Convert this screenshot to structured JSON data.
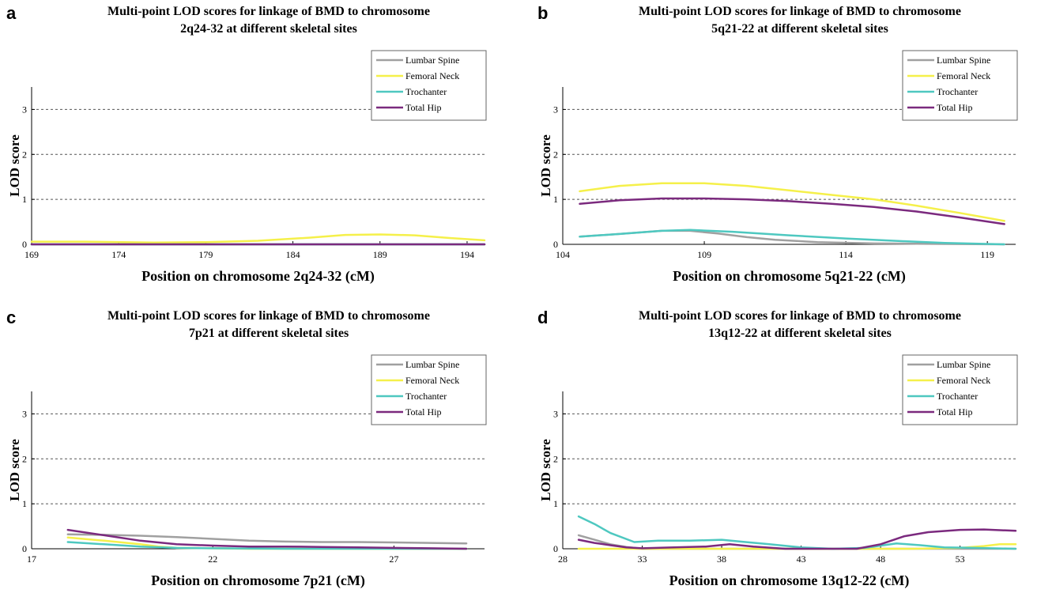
{
  "chart_data": [
    {
      "type": "line",
      "panel": "a",
      "title_line1": "Multi-point LOD scores for linkage of BMD to chromosome",
      "title_line2": "2q24-32 at different skeletal sites",
      "xlabel": "Position on chromosome 2q24-32 (cM)",
      "ylabel": "LOD score",
      "xlim": [
        169,
        195
      ],
      "ylim": [
        0,
        3.5
      ],
      "xticks": [
        169,
        174,
        179,
        184,
        189,
        194
      ],
      "yticks": [
        0,
        1,
        2,
        3
      ],
      "grid": "dashed horizontal at 1, 2, 3",
      "legend_position": "top-right",
      "series": [
        {
          "name": "Lumbar Spine",
          "color": "#a0a0a0",
          "x": [
            169,
            195
          ],
          "y": [
            0.0,
            0.0
          ]
        },
        {
          "name": "Femoral Neck",
          "color": "#f5f04a",
          "x": [
            169,
            172,
            176,
            179,
            182,
            185,
            187,
            189,
            191,
            193,
            195
          ],
          "y": [
            0.06,
            0.06,
            0.04,
            0.05,
            0.08,
            0.15,
            0.21,
            0.22,
            0.2,
            0.14,
            0.09
          ]
        },
        {
          "name": "Trochanter",
          "color": "#4ec8c0",
          "x": [
            169,
            195
          ],
          "y": [
            0.0,
            0.0
          ]
        },
        {
          "name": "Total Hip",
          "color": "#7b2a7e",
          "x": [
            169,
            195
          ],
          "y": [
            0.0,
            0.0
          ]
        }
      ]
    },
    {
      "type": "line",
      "panel": "b",
      "title_line1": "Multi-point LOD scores for linkage of BMD to chromosome",
      "title_line2": "5q21-22 at different skeletal sites",
      "xlabel": "Position on chromosome 5q21-22 (cM)",
      "ylabel": "LOD score",
      "xlim": [
        104,
        120
      ],
      "ylim": [
        0,
        3.5
      ],
      "xticks": [
        104,
        109,
        114,
        119
      ],
      "yticks": [
        0,
        1,
        2,
        3
      ],
      "grid": "dashed horizontal at 1, 2, 3",
      "legend_position": "top-right",
      "series": [
        {
          "name": "Lumbar Spine",
          "color": "#a0a0a0",
          "x": [
            104.6,
            106,
            107.5,
            108.5,
            109.5,
            110.5,
            111.5,
            113,
            115,
            117,
            119.6
          ],
          "y": [
            0.17,
            0.23,
            0.3,
            0.3,
            0.24,
            0.16,
            0.1,
            0.05,
            0.02,
            0.01,
            0.0
          ]
        },
        {
          "name": "Femoral Neck",
          "color": "#f5f04a",
          "x": [
            104.6,
            106,
            107.5,
            109,
            110.5,
            112,
            113.5,
            115,
            116.5,
            118,
            119.6
          ],
          "y": [
            1.18,
            1.3,
            1.36,
            1.36,
            1.3,
            1.2,
            1.1,
            1.0,
            0.86,
            0.7,
            0.52
          ]
        },
        {
          "name": "Trochanter",
          "color": "#4ec8c0",
          "x": [
            104.6,
            106,
            107.5,
            108.5,
            110,
            112,
            114,
            116,
            117.5,
            119.6
          ],
          "y": [
            0.17,
            0.23,
            0.3,
            0.32,
            0.28,
            0.2,
            0.13,
            0.07,
            0.03,
            0.0
          ]
        },
        {
          "name": "Total Hip",
          "color": "#7b2a7e",
          "x": [
            104.6,
            106,
            107.5,
            109,
            110.5,
            112,
            113.5,
            115,
            116.5,
            118,
            119.6
          ],
          "y": [
            0.9,
            0.98,
            1.02,
            1.02,
            1.0,
            0.96,
            0.9,
            0.83,
            0.73,
            0.6,
            0.45
          ]
        }
      ]
    },
    {
      "type": "line",
      "panel": "c",
      "title_line1": "Multi-point LOD scores for linkage of BMD to chromosome",
      "title_line2": "7p21 at different skeletal sites",
      "xlabel": "Position on chromosome 7p21 (cM)",
      "ylabel": "LOD score",
      "xlim": [
        17,
        29.5
      ],
      "ylim": [
        0,
        3.5
      ],
      "xticks": [
        17,
        22,
        27
      ],
      "yticks": [
        0,
        1,
        2,
        3
      ],
      "grid": "dashed horizontal at 1, 2, 3",
      "legend_position": "top-right",
      "series": [
        {
          "name": "Lumbar Spine",
          "color": "#a0a0a0",
          "x": [
            18,
            19,
            20,
            21,
            22,
            23,
            24,
            25,
            26,
            27,
            28,
            29
          ],
          "y": [
            0.32,
            0.31,
            0.29,
            0.26,
            0.22,
            0.18,
            0.16,
            0.15,
            0.15,
            0.14,
            0.13,
            0.12
          ]
        },
        {
          "name": "Femoral Neck",
          "color": "#f5f04a",
          "x": [
            18,
            19,
            20,
            20.5,
            21,
            22,
            23,
            25,
            27,
            29
          ],
          "y": [
            0.25,
            0.18,
            0.1,
            0.05,
            0.02,
            0.01,
            0.0,
            0.0,
            0.0,
            0.0
          ]
        },
        {
          "name": "Trochanter",
          "color": "#4ec8c0",
          "x": [
            18,
            19,
            20,
            21,
            22,
            24,
            26,
            29
          ],
          "y": [
            0.15,
            0.1,
            0.05,
            0.02,
            0.01,
            0.0,
            0.0,
            0.0
          ]
        },
        {
          "name": "Total Hip",
          "color": "#7b2a7e",
          "x": [
            18,
            19,
            20,
            21,
            22,
            23,
            24,
            25,
            26,
            27,
            28,
            29
          ],
          "y": [
            0.42,
            0.3,
            0.18,
            0.1,
            0.07,
            0.05,
            0.05,
            0.04,
            0.03,
            0.02,
            0.01,
            0.0
          ]
        }
      ]
    },
    {
      "type": "line",
      "panel": "d",
      "title_line1": "Multi-point LOD scores for linkage of BMD to chromosome",
      "title_line2": "13q12-22 at different skeletal sites",
      "xlabel": "Position on chromosome 13q12-22 (cM)",
      "ylabel": "LOD score",
      "xlim": [
        28,
        56.5
      ],
      "ylim": [
        0,
        3.5
      ],
      "xticks": [
        28,
        33,
        38,
        43,
        48,
        53
      ],
      "yticks": [
        0,
        1,
        2,
        3
      ],
      "grid": "dashed horizontal at 1, 2, 3",
      "legend_position": "top-right",
      "series": [
        {
          "name": "Lumbar Spine",
          "color": "#a0a0a0",
          "x": [
            29,
            30,
            31,
            32,
            33,
            36,
            40,
            45,
            50,
            53,
            55,
            56.5
          ],
          "y": [
            0.3,
            0.2,
            0.1,
            0.04,
            0.0,
            0.0,
            0.0,
            0.0,
            0.0,
            0.0,
            0.0,
            0.0
          ]
        },
        {
          "name": "Femoral Neck",
          "color": "#f5f04a",
          "x": [
            29,
            34,
            40,
            46,
            50,
            53,
            54.5,
            55.5,
            56.5
          ],
          "y": [
            0.0,
            0.0,
            0.0,
            0.0,
            0.0,
            0.02,
            0.06,
            0.1,
            0.1
          ]
        },
        {
          "name": "Trochanter",
          "color": "#4ec8c0",
          "x": [
            29,
            30,
            31,
            32.5,
            34,
            36,
            38,
            39.5,
            41,
            43,
            45,
            47,
            49,
            50.5,
            52,
            54,
            56.5
          ],
          "y": [
            0.72,
            0.55,
            0.35,
            0.15,
            0.18,
            0.18,
            0.2,
            0.15,
            0.1,
            0.03,
            0.0,
            0.02,
            0.12,
            0.08,
            0.03,
            0.02,
            0.0
          ]
        },
        {
          "name": "Total Hip",
          "color": "#7b2a7e",
          "x": [
            29,
            30,
            31,
            32,
            33,
            35,
            37,
            38.5,
            40,
            42,
            44,
            46.5,
            48,
            49.5,
            51,
            53,
            54.5,
            56.5
          ],
          "y": [
            0.2,
            0.13,
            0.08,
            0.03,
            0.01,
            0.03,
            0.05,
            0.1,
            0.05,
            0.0,
            0.0,
            0.0,
            0.1,
            0.28,
            0.37,
            0.42,
            0.43,
            0.4
          ]
        }
      ]
    }
  ],
  "panels": [
    {
      "letter": "a"
    },
    {
      "letter": "b"
    },
    {
      "letter": "c"
    },
    {
      "letter": "d"
    }
  ]
}
